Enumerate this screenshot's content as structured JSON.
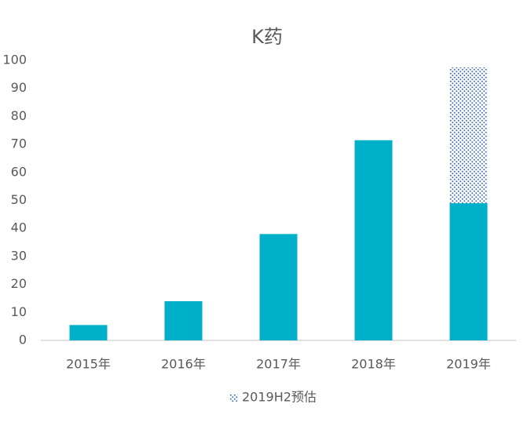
{
  "chart_data": {
    "type": "stacked-bar",
    "title": "K药",
    "categories": [
      "2015年",
      "2016年",
      "2017年",
      "2018年",
      "2019年"
    ],
    "series": [
      {
        "color": "#00b0c8",
        "values": [
          5.5,
          14,
          38,
          71.5,
          49
        ]
      },
      {
        "name": "2019H2预估",
        "color": "#3a6fb5",
        "pattern": "dots",
        "values": [
          null,
          null,
          null,
          null,
          48.5
        ]
      }
    ],
    "ylim": [
      0,
      100
    ],
    "yticks": [
      0,
      10,
      20,
      30,
      40,
      50,
      60,
      70,
      80,
      90,
      100
    ],
    "grid": false
  }
}
